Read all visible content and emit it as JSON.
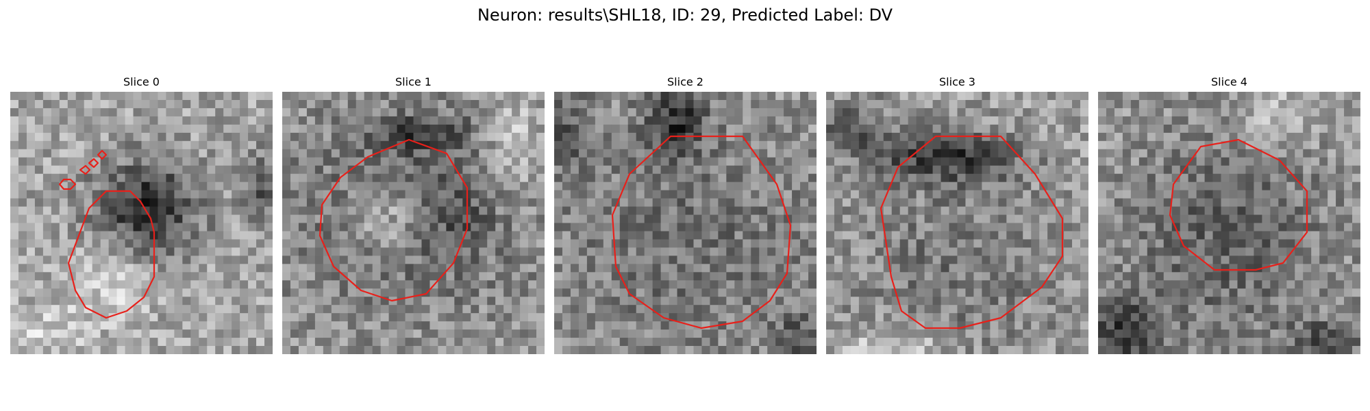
{
  "figure": {
    "title": "Neuron: results\\SHL18, ID: 29, Predicted Label: DV"
  },
  "contour_color": "#e8201a",
  "slices": [
    {
      "title": "Slice 0"
    },
    {
      "title": "Slice 1"
    },
    {
      "title": "Slice 2"
    },
    {
      "title": "Slice 3"
    },
    {
      "title": "Slice 4"
    }
  ]
}
